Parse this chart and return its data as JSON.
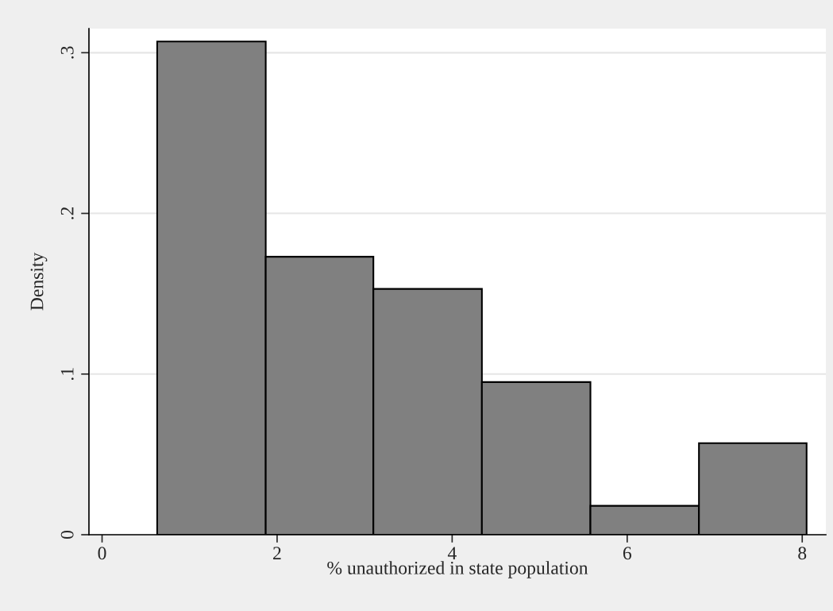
{
  "chart_data": {
    "type": "histogram",
    "xlabel": "% unauthorized in state population",
    "ylabel": "Density",
    "bins": [
      0.63,
      1.87,
      3.1,
      4.34,
      5.58,
      6.82,
      8.05
    ],
    "values": [
      0.307,
      0.173,
      0.153,
      0.095,
      0.018,
      0.057
    ],
    "color": "#808080",
    "xlim": [
      -0.15,
      8.27
    ],
    "xticks": [
      0,
      2,
      4,
      6,
      8
    ],
    "ylim": [
      0,
      0.315
    ],
    "yticks": [
      {
        "value": 0,
        "label": "0"
      },
      {
        "value": 0.1,
        "label": ".1"
      },
      {
        "value": 0.2,
        "label": ".2"
      },
      {
        "value": 0.3,
        "label": ".3"
      }
    ],
    "grid": "y"
  }
}
